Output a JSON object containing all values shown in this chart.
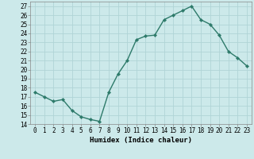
{
  "x": [
    0,
    1,
    2,
    3,
    4,
    5,
    6,
    7,
    8,
    9,
    10,
    11,
    12,
    13,
    14,
    15,
    16,
    17,
    18,
    19,
    20,
    21,
    22,
    23
  ],
  "y": [
    17.5,
    17.0,
    16.5,
    16.7,
    15.5,
    14.8,
    14.5,
    14.3,
    17.5,
    19.5,
    21.0,
    23.3,
    23.7,
    23.8,
    25.5,
    26.0,
    26.5,
    27.0,
    25.5,
    25.0,
    23.8,
    22.0,
    21.3,
    20.4
  ],
  "line_color": "#2d7a6a",
  "marker": "D",
  "marker_size": 2.2,
  "bg_color": "#cce9ea",
  "grid_color": "#b0d4d6",
  "xlabel": "Humidex (Indice chaleur)",
  "ylim": [
    14,
    27.5
  ],
  "xlim": [
    -0.5,
    23.5
  ],
  "yticks": [
    14,
    15,
    16,
    17,
    18,
    19,
    20,
    21,
    22,
    23,
    24,
    25,
    26,
    27
  ],
  "xticks": [
    0,
    1,
    2,
    3,
    4,
    5,
    6,
    7,
    8,
    9,
    10,
    11,
    12,
    13,
    14,
    15,
    16,
    17,
    18,
    19,
    20,
    21,
    22,
    23
  ],
  "xtick_labels": [
    "0",
    "1",
    "2",
    "3",
    "4",
    "5",
    "6",
    "7",
    "8",
    "9",
    "10",
    "11",
    "12",
    "13",
    "14",
    "15",
    "16",
    "17",
    "18",
    "19",
    "20",
    "21",
    "22",
    "23"
  ],
  "tick_fontsize": 5.5,
  "xlabel_fontsize": 6.5,
  "line_width": 1.0
}
